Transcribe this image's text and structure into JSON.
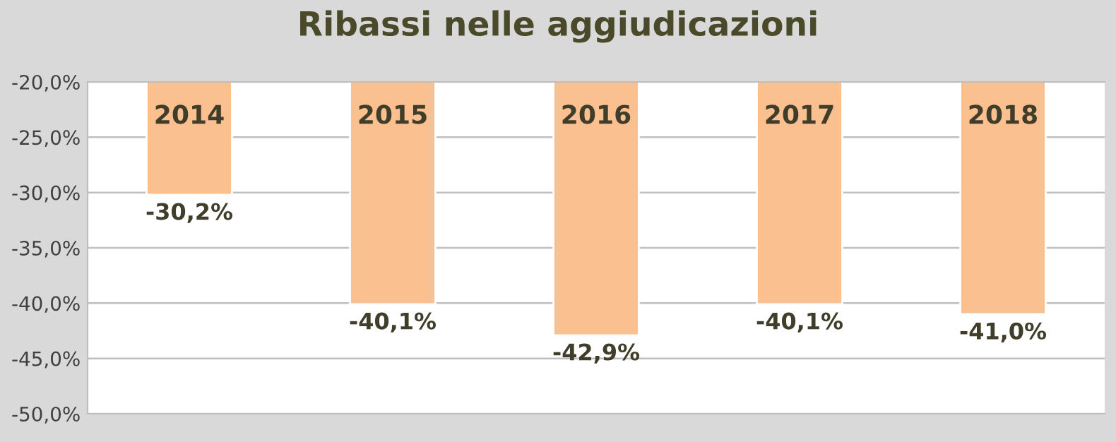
{
  "chart_data": {
    "type": "bar",
    "title": "Ribassi nelle aggiudicazioni",
    "categories": [
      "2014",
      "2015",
      "2016",
      "2017",
      "2018"
    ],
    "values": [
      -30.2,
      -40.1,
      -42.9,
      -40.1,
      -41.0
    ],
    "value_labels": [
      "-30,2%",
      "-40,1%",
      "-42,9%",
      "-40,1%",
      "-41,0%"
    ],
    "color": "#fac090",
    "ylim": [
      -50,
      -20
    ],
    "yticks": [
      {
        "value": -50,
        "label": "-50,0%"
      },
      {
        "value": -45,
        "label": "-45,0%"
      },
      {
        "value": -40,
        "label": "-40,0%"
      },
      {
        "value": -35,
        "label": "-35,0%"
      },
      {
        "value": -30,
        "label": "-30,0%"
      },
      {
        "value": -25,
        "label": "-25,0%"
      },
      {
        "value": -20,
        "label": "-20,0%"
      }
    ],
    "grid": "y"
  }
}
